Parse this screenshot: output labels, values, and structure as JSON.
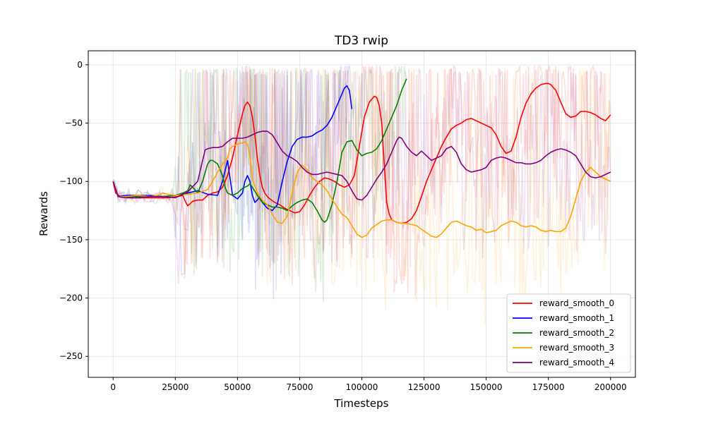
{
  "chart_data": {
    "type": "line",
    "title": "TD3 rwip",
    "xlabel": "Timesteps",
    "ylabel": "Rewards",
    "xlim": [
      -10000,
      210000
    ],
    "ylim": [
      -268,
      12
    ],
    "x_ticks": [
      0,
      25000,
      50000,
      75000,
      100000,
      125000,
      150000,
      175000,
      200000
    ],
    "x_tick_labels": [
      "0",
      "25000",
      "50000",
      "75000",
      "100000",
      "125000",
      "150000",
      "175000",
      "200000"
    ],
    "y_ticks": [
      0,
      -50,
      -100,
      -150,
      -200,
      -250
    ],
    "y_tick_labels": [
      "0",
      "−50",
      "−100",
      "−150",
      "−200",
      "−250"
    ],
    "grid": true,
    "legend_position": "bottom-right",
    "series": [
      {
        "name": "reward_smooth_0",
        "color": "#ff0000",
        "x": [
          0,
          1000,
          3000,
          8000,
          15000,
          22000,
          26000,
          28000,
          29000,
          30000,
          32000,
          34000,
          36000,
          38000,
          40000,
          42000,
          44000,
          46000,
          48000,
          50000,
          52000,
          53000,
          54000,
          55000,
          56000,
          57000,
          58000,
          59000,
          60000,
          61000,
          62000,
          63000,
          65000,
          67000,
          69000,
          71000,
          73000,
          75000,
          77000,
          79000,
          81000,
          83000,
          85000,
          87000,
          89000,
          91000,
          93000,
          95000,
          97000,
          99000,
          101000,
          103000,
          105000,
          106000,
          107000,
          108000,
          109000,
          110000,
          111000,
          112000,
          114000,
          116000,
          118000,
          120000,
          122000,
          124000,
          126000,
          128000,
          130000,
          132000,
          134000,
          136000,
          138000,
          140000,
          142000,
          144000,
          146000,
          148000,
          150000,
          152000,
          154000,
          156000,
          158000,
          160000,
          162000,
          164000,
          166000,
          168000,
          170000,
          172000,
          174000,
          175000,
          176000,
          178000,
          180000,
          182000,
          184000,
          186000,
          188000,
          190000,
          192000,
          194000,
          196000,
          198000,
          200000
        ],
        "y": [
          -100,
          -110,
          -113,
          -114,
          -114,
          -114,
          -113,
          -112,
          -117,
          -121,
          -117,
          -116,
          -116,
          -112,
          -110,
          -109,
          -105,
          -95,
          -80,
          -60,
          -42,
          -35,
          -32,
          -35,
          -45,
          -60,
          -80,
          -95,
          -105,
          -110,
          -113,
          -115,
          -118,
          -120,
          -123,
          -125,
          -127,
          -126,
          -120,
          -112,
          -105,
          -100,
          -97,
          -98,
          -100,
          -103,
          -105,
          -103,
          -95,
          -70,
          -45,
          -32,
          -27,
          -28,
          -35,
          -50,
          -85,
          -118,
          -128,
          -133,
          -135,
          -136,
          -135,
          -132,
          -125,
          -113,
          -100,
          -90,
          -80,
          -70,
          -62,
          -55,
          -52,
          -50,
          -47,
          -46,
          -48,
          -50,
          -52,
          -54,
          -60,
          -70,
          -76,
          -74,
          -62,
          -45,
          -33,
          -25,
          -20,
          -17,
          -16,
          -16,
          -17,
          -22,
          -32,
          -42,
          -45,
          -44,
          -40,
          -40,
          -41,
          -43,
          -46,
          -48,
          -43
        ],
        "raw_color": "rgba(255,0,0,0.13)"
      },
      {
        "name": "reward_smooth_1",
        "color": "#0000ff",
        "x": [
          0,
          2000,
          5000,
          10000,
          15000,
          20000,
          25000,
          30000,
          34000,
          38000,
          42000,
          44000,
          46000,
          48000,
          50000,
          52000,
          53000,
          54000,
          55000,
          56000,
          57000,
          58000,
          59000,
          60000,
          62000,
          64000,
          66000,
          68000,
          70000,
          72000,
          74000,
          76000,
          78000,
          80000,
          82000,
          84000,
          86000,
          88000,
          90000,
          92000,
          93000,
          94000,
          95000,
          96000
        ],
        "y": [
          -100,
          -113,
          -112,
          -112,
          -112,
          -113,
          -112,
          -110,
          -108,
          -111,
          -112,
          -100,
          -82,
          -112,
          -115,
          -110,
          -100,
          -95,
          -100,
          -112,
          -118,
          -116,
          -113,
          -118,
          -123,
          -125,
          -120,
          -100,
          -83,
          -70,
          -64,
          -62,
          -62,
          -61,
          -58,
          -56,
          -52,
          -45,
          -35,
          -25,
          -20,
          -18,
          -22,
          -38
        ],
        "raw_color": "rgba(0,0,255,0.13)"
      },
      {
        "name": "reward_smooth_2",
        "color": "#008000",
        "x": [
          0,
          2000,
          5000,
          10000,
          15000,
          20000,
          25000,
          28000,
          30000,
          31000,
          32000,
          34000,
          36000,
          38000,
          39000,
          40000,
          42000,
          44000,
          45000,
          46000,
          48000,
          50000,
          52000,
          54000,
          55000,
          56000,
          58000,
          60000,
          62000,
          64000,
          66000,
          68000,
          70000,
          72000,
          74000,
          76000,
          78000,
          80000,
          82000,
          84000,
          85000,
          86000,
          88000,
          90000,
          91000,
          92000,
          94000,
          96000,
          98000,
          100000,
          102000,
          104000,
          106000,
          108000,
          110000,
          112000,
          114000,
          116000,
          118000
        ],
        "y": [
          -100,
          -113,
          -113,
          -113,
          -113,
          -113,
          -112,
          -110,
          -108,
          -103,
          -105,
          -110,
          -100,
          -85,
          -82,
          -82,
          -85,
          -95,
          -105,
          -110,
          -112,
          -110,
          -106,
          -104,
          -102,
          -105,
          -112,
          -118,
          -120,
          -122,
          -122,
          -123,
          -125,
          -121,
          -118,
          -116,
          -115,
          -118,
          -125,
          -133,
          -135,
          -133,
          -120,
          -100,
          -88,
          -75,
          -66,
          -65,
          -73,
          -78,
          -76,
          -75,
          -72,
          -65,
          -55,
          -45,
          -35,
          -22,
          -12
        ],
        "raw_color": "rgba(0,128,0,0.13)"
      },
      {
        "name": "reward_smooth_3",
        "color": "#ffa500",
        "x": [
          0,
          2000,
          5000,
          10000,
          15000,
          18000,
          20000,
          22000,
          25000,
          30000,
          34000,
          38000,
          40000,
          42000,
          44000,
          46000,
          47000,
          48000,
          50000,
          52000,
          53000,
          54000,
          55000,
          56000,
          58000,
          60000,
          62000,
          64000,
          66000,
          68000,
          70000,
          72000,
          74000,
          76000,
          78000,
          80000,
          82000,
          84000,
          86000,
          88000,
          90000,
          92000,
          94000,
          96000,
          98000,
          100000,
          102000,
          104000,
          106000,
          108000,
          110000,
          112000,
          114000,
          116000,
          118000,
          120000,
          122000,
          124000,
          126000,
          128000,
          130000,
          132000,
          134000,
          136000,
          138000,
          140000,
          142000,
          144000,
          146000,
          148000,
          150000,
          152000,
          154000,
          156000,
          158000,
          160000,
          162000,
          164000,
          166000,
          168000,
          170000,
          172000,
          174000,
          176000,
          178000,
          180000,
          182000,
          184000,
          186000,
          188000,
          190000,
          192000,
          194000,
          196000,
          198000,
          200000
        ],
        "y": [
          -100,
          -113,
          -113,
          -112,
          -113,
          -112,
          -110,
          -111,
          -112,
          -111,
          -110,
          -107,
          -100,
          -92,
          -85,
          -80,
          -72,
          -70,
          -68,
          -67,
          -66,
          -68,
          -78,
          -98,
          -110,
          -116,
          -120,
          -128,
          -135,
          -136,
          -130,
          -110,
          -92,
          -86,
          -90,
          -97,
          -100,
          -103,
          -108,
          -115,
          -122,
          -128,
          -131,
          -138,
          -145,
          -148,
          -146,
          -140,
          -137,
          -134,
          -133,
          -133,
          -135,
          -136,
          -136,
          -137,
          -138,
          -141,
          -144,
          -147,
          -148,
          -145,
          -140,
          -135,
          -134,
          -136,
          -138,
          -139,
          -142,
          -141,
          -144,
          -143,
          -142,
          -138,
          -136,
          -134,
          -135,
          -138,
          -139,
          -138,
          -139,
          -142,
          -143,
          -142,
          -143,
          -143,
          -140,
          -130,
          -115,
          -100,
          -92,
          -88,
          -92,
          -96,
          -98,
          -100
        ],
        "raw_color": "rgba(255,165,0,0.13)"
      },
      {
        "name": "reward_smooth_4",
        "color": "#800080",
        "x": [
          0,
          2000,
          5000,
          10000,
          15000,
          20000,
          25000,
          30000,
          34000,
          36000,
          37000,
          38000,
          40000,
          42000,
          44000,
          46000,
          48000,
          50000,
          52000,
          54000,
          56000,
          58000,
          60000,
          62000,
          64000,
          66000,
          68000,
          70000,
          72000,
          74000,
          76000,
          78000,
          80000,
          82000,
          84000,
          86000,
          88000,
          90000,
          92000,
          94000,
          96000,
          98000,
          100000,
          102000,
          104000,
          106000,
          108000,
          110000,
          112000,
          114000,
          115000,
          116000,
          118000,
          120000,
          122000,
          124000,
          126000,
          128000,
          130000,
          132000,
          134000,
          136000,
          138000,
          140000,
          142000,
          144000,
          146000,
          148000,
          150000,
          152000,
          154000,
          156000,
          158000,
          160000,
          162000,
          164000,
          166000,
          168000,
          170000,
          172000,
          174000,
          176000,
          178000,
          180000,
          182000,
          184000,
          186000,
          188000,
          190000,
          192000,
          194000,
          196000,
          198000,
          200000
        ],
        "y": [
          -100,
          -113,
          -114,
          -114,
          -113,
          -113,
          -114,
          -109,
          -100,
          -82,
          -73,
          -72,
          -71,
          -71,
          -70,
          -66,
          -63,
          -63,
          -63,
          -62,
          -60,
          -58,
          -57,
          -57,
          -60,
          -67,
          -74,
          -78,
          -80,
          -83,
          -88,
          -92,
          -94,
          -94,
          -93,
          -92,
          -93,
          -94,
          -95,
          -100,
          -108,
          -115,
          -116,
          -112,
          -105,
          -98,
          -92,
          -85,
          -75,
          -65,
          -62,
          -63,
          -70,
          -75,
          -78,
          -74,
          -78,
          -82,
          -80,
          -78,
          -72,
          -70,
          -75,
          -85,
          -90,
          -92,
          -91,
          -90,
          -88,
          -82,
          -80,
          -79,
          -80,
          -82,
          -84,
          -84,
          -85,
          -85,
          -84,
          -82,
          -78,
          -75,
          -73,
          -72,
          -73,
          -75,
          -78,
          -85,
          -92,
          -96,
          -97,
          -96,
          -94,
          -92
        ],
        "raw_color": "rgba(128,0,128,0.12)"
      }
    ]
  }
}
